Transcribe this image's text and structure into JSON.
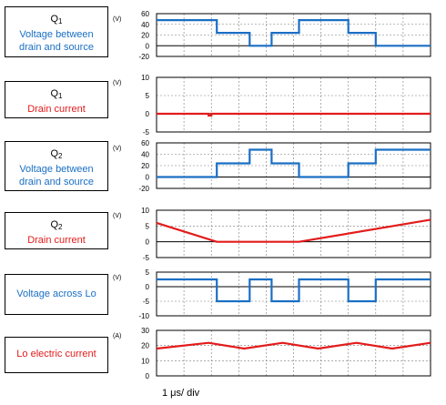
{
  "footer": {
    "time_scale": "1 μs/ div"
  },
  "colors": {
    "blue": "#1a6fc4",
    "red": "#e31b1b",
    "grid": "#7a7a7a"
  },
  "panels": [
    {
      "line1": "Q",
      "line1_sub": "1",
      "line2": "Voltage between",
      "line3": "drain and source",
      "color": "blue",
      "unit": "(V)"
    },
    {
      "line1": "Q",
      "line1_sub": "1",
      "line2": "Drain current",
      "line3": "",
      "color": "red",
      "unit": "(V)"
    },
    {
      "line1": "Q",
      "line1_sub": "2",
      "line2": "Voltage between",
      "line3": "drain and source",
      "color": "blue",
      "unit": "(V)"
    },
    {
      "line1": "Q",
      "line1_sub": "2",
      "line2": "Drain current",
      "line3": "",
      "color": "red",
      "unit": "(V)"
    },
    {
      "line1": "",
      "line1_sub": "",
      "line2": "Voltage across Lo",
      "line3": "",
      "color": "blue",
      "unit": "(V)"
    },
    {
      "line1": "",
      "line1_sub": "",
      "line2": "Lo electric current",
      "line3": "",
      "color": "red",
      "unit": "(A)"
    }
  ],
  "chart_data": [
    {
      "type": "line",
      "title": "",
      "ylim": [
        -20,
        60
      ],
      "yticks": [
        "60",
        "40",
        "20",
        "0",
        "-20"
      ],
      "xlim": [
        0,
        10
      ],
      "series": [
        {
          "x": [
            0,
            2.2,
            2.2,
            3.4,
            3.4,
            4.2,
            4.2,
            5.2,
            5.2,
            7.0,
            7.0,
            8.0,
            8.0,
            10
          ],
          "y": [
            48,
            48,
            24,
            24,
            0,
            0,
            24,
            24,
            48,
            48,
            24,
            24,
            0,
            0
          ]
        }
      ]
    },
    {
      "type": "line",
      "title": "",
      "ylim": [
        -5,
        10
      ],
      "yticks": [
        "10",
        "5",
        "0",
        "-5"
      ],
      "xlim": [
        0,
        10
      ],
      "series": [
        {
          "x": [
            0,
            1.9,
            1.9,
            2.0,
            2.0,
            3.4,
            3.4,
            4.6,
            4.6,
            5.5,
            5.5,
            6.5,
            6.5,
            7.0,
            7.0,
            8.2,
            8.2,
            10
          ],
          "y": [
            0,
            0,
            -0.5,
            -0.5,
            0,
            0,
            0,
            0,
            0,
            0,
            0,
            0,
            0,
            0,
            0,
            0,
            0,
            0
          ]
        }
      ]
    },
    {
      "type": "line",
      "title": "",
      "ylim": [
        -20,
        60
      ],
      "yticks": [
        "60",
        "40",
        "20",
        "0",
        "-20"
      ],
      "xlim": [
        0,
        10
      ],
      "series": [
        {
          "x": [
            0,
            2.2,
            2.2,
            3.4,
            3.4,
            4.2,
            4.2,
            5.2,
            5.2,
            7.0,
            7.0,
            8.0,
            8.0,
            10
          ],
          "y": [
            0,
            0,
            24,
            24,
            48,
            48,
            24,
            24,
            0,
            0,
            24,
            24,
            48,
            48
          ]
        }
      ]
    },
    {
      "type": "line",
      "title": "",
      "ylim": [
        -5,
        10
      ],
      "yticks": [
        "10",
        "5",
        "0",
        "-5"
      ],
      "xlim": [
        0,
        10
      ],
      "series": [
        {
          "x": [
            0,
            2.2,
            2.2,
            5.2,
            5.2,
            10
          ],
          "y": [
            6,
            0,
            0,
            0,
            0,
            7
          ]
        }
      ]
    },
    {
      "type": "line",
      "title": "",
      "ylim": [
        -10,
        5
      ],
      "yticks": [
        "5",
        "0",
        "-5",
        "-10"
      ],
      "xlim": [
        0,
        10
      ],
      "series": [
        {
          "x": [
            0,
            2.2,
            2.2,
            3.4,
            3.4,
            4.2,
            4.2,
            5.2,
            5.2,
            7.0,
            7.0,
            8.0,
            8.0,
            10
          ],
          "y": [
            2.5,
            2.5,
            -5,
            -5,
            2.5,
            2.5,
            -5,
            -5,
            2.5,
            2.5,
            -5,
            -5,
            2.5,
            2.5
          ]
        }
      ]
    },
    {
      "type": "line",
      "title": "",
      "ylim": [
        0,
        30
      ],
      "yticks": [
        "30",
        "20",
        "10",
        "0"
      ],
      "xlim": [
        0,
        10
      ],
      "series": [
        {
          "x": [
            0,
            1.9,
            3.2,
            4.6,
            5.9,
            7.3,
            8.6,
            10
          ],
          "y": [
            18,
            21.8,
            18,
            21.8,
            18,
            21.8,
            18,
            21.8
          ]
        }
      ]
    }
  ]
}
